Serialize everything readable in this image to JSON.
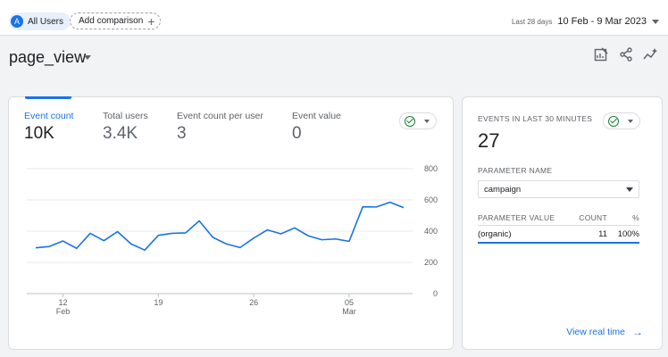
{
  "header": {
    "segment_initial": "A",
    "segment_label": "All Users",
    "add_comparison_label": "Add comparison",
    "date_range_label": "Last 28 days",
    "date_range_value": "10 Feb - 9 Mar 2023"
  },
  "page": {
    "title": "page_view",
    "icons": [
      "customize-report-icon",
      "share-icon",
      "insights-icon"
    ]
  },
  "metrics": [
    {
      "label": "Event count",
      "value": "10K",
      "active": true
    },
    {
      "label": "Total users",
      "value": "3.4K",
      "active": false
    },
    {
      "label": "Event count per user",
      "value": "3",
      "active": false
    },
    {
      "label": "Event value",
      "value": "0",
      "active": false
    }
  ],
  "chart_data": {
    "type": "line",
    "series": [
      {
        "values": [
          293,
          302,
          337,
          290,
          386,
          339,
          397,
          318,
          279,
          373,
          386,
          389,
          466,
          360,
          318,
          295,
          356,
          408,
          383,
          421,
          370,
          345,
          350,
          335,
          556,
          555,
          585,
          551
        ]
      }
    ],
    "x_ticks": [
      {
        "index": 2,
        "day": "12",
        "month": "Feb"
      },
      {
        "index": 9,
        "day": "19",
        "month": ""
      },
      {
        "index": 16,
        "day": "26",
        "month": ""
      },
      {
        "index": 23,
        "day": "05",
        "month": "Mar"
      }
    ],
    "y_ticks": [
      "800",
      "600",
      "400",
      "200",
      "0"
    ],
    "ylim": [
      0,
      800
    ],
    "grid": true,
    "line_color": "#1a73e8"
  },
  "realtime": {
    "title": "EVENTS IN LAST 30 MINUTES",
    "value": "27",
    "param_name_label": "PARAMETER NAME",
    "param_selected": "campaign",
    "table_headers": [
      "PARAMETER VALUE",
      "COUNT",
      "%"
    ],
    "rows": [
      {
        "value": "(organic)",
        "count": "11",
        "pct": "100%"
      }
    ],
    "link_label": "View real time",
    "link_arrow": "→"
  },
  "colors": {
    "accent": "#1a73e8",
    "success": "#188038",
    "background": "#f1f3f4"
  }
}
